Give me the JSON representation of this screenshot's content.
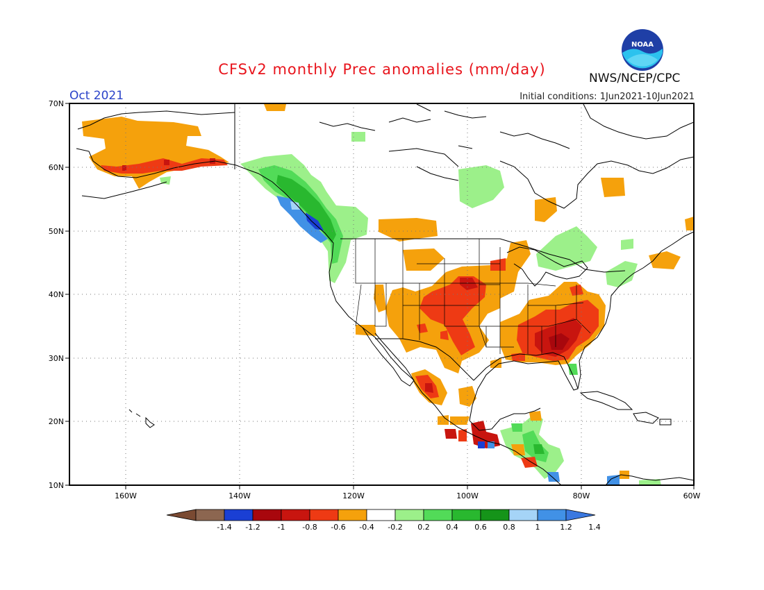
{
  "title": "CFSv2 monthly Prec anomalies (mm/day)",
  "month_label": "Oct 2021",
  "initial_conditions": "Initial conditions: 1Jun2021-10Jun2021",
  "agency": "NWS/NCEP/CPC",
  "logo_text": "NOAA",
  "axes": {
    "lat_ticks": [
      "70N",
      "60N",
      "50N",
      "40N",
      "30N",
      "20N",
      "10N"
    ],
    "lon_ticks": [
      "160W",
      "140W",
      "120W",
      "100W",
      "80W",
      "60W"
    ]
  },
  "colorbar": {
    "labels": [
      "-1.4",
      "-1.2",
      "-1",
      "-0.8",
      "-0.6",
      "-0.4",
      "-0.2",
      "0.2",
      "0.4",
      "0.6",
      "0.8",
      "1",
      "1.2",
      "1.4"
    ],
    "colors": [
      "#8c6650",
      "#1a3fd4",
      "#a8070d",
      "#c8150f",
      "#ee3a14",
      "#f5a10c",
      "#ffffff",
      "#9cf08a",
      "#52db58",
      "#29b82f",
      "#159419",
      "#a5d4f7",
      "#4191e6"
    ],
    "low_arrow_color": "#7a4a32",
    "high_arrow_color": "#3a78e0"
  },
  "colors": {
    "title": "#e8141c",
    "month": "#2b43c9"
  }
}
